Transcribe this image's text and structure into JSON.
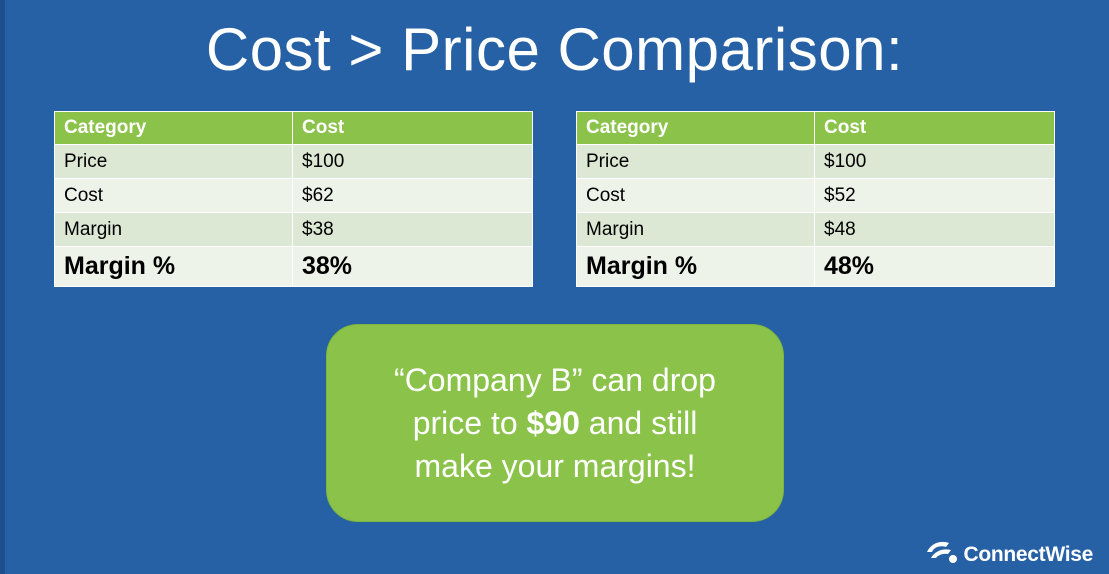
{
  "title": "Cost > Price Comparison:",
  "tables": [
    {
      "header": [
        "Category",
        "Cost"
      ],
      "rows": [
        [
          "Price",
          "$100"
        ],
        [
          "Cost",
          "$62"
        ],
        [
          "Margin",
          "$38"
        ],
        [
          "Margin %",
          "38%"
        ]
      ]
    },
    {
      "header": [
        "Category",
        "Cost"
      ],
      "rows": [
        [
          "Price",
          "$100"
        ],
        [
          "Cost",
          "$52"
        ],
        [
          "Margin",
          "$48"
        ],
        [
          "Margin %",
          "48%"
        ]
      ]
    }
  ],
  "callout": {
    "line1": "“Company B” can drop",
    "line2_pre": "price to ",
    "line2_bold": "$90",
    "line2_post": " and still",
    "line3": "make your margins!"
  },
  "brand": {
    "name": "ConnectWise",
    "icon": "connectwise-logo-icon"
  },
  "colors": {
    "background": "#2761a5",
    "header_green": "#8bc34a",
    "row_dark": "#dce8d4",
    "row_light": "#eef3ea",
    "callout_green": "#8bc34a"
  }
}
